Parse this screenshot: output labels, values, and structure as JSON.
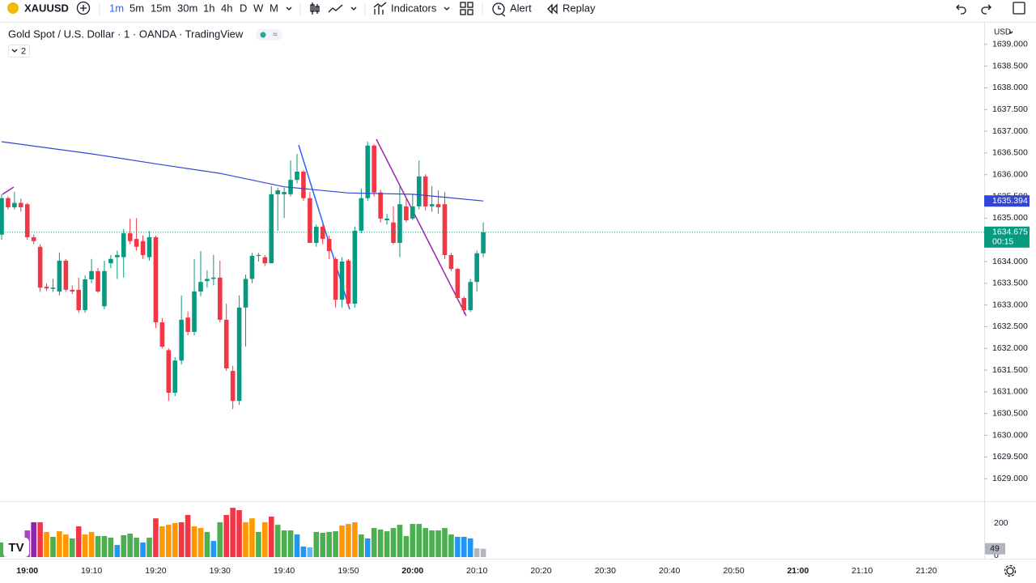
{
  "toolbar": {
    "symbol": "XAUUSD",
    "intervals": [
      "1m",
      "5m",
      "15m",
      "30m",
      "1h",
      "4h",
      "D",
      "W",
      "M"
    ],
    "active_interval": "1m",
    "indicators": "Indicators",
    "alert": "Alert",
    "replay": "Replay"
  },
  "chart_data": {
    "type": "candlestick",
    "title": "Gold Spot / U.S. Dollar · 1 · OANDA · TradingView",
    "indicator_count": 2,
    "currency": "USD",
    "x": [
      "18:56",
      "18:57",
      "18:58",
      "18:59",
      "19:00",
      "19:01",
      "19:02",
      "19:03",
      "19:04",
      "19:05",
      "19:06",
      "19:07",
      "19:08",
      "19:09",
      "19:10",
      "19:11",
      "19:12",
      "19:13",
      "19:14",
      "19:15",
      "19:16",
      "19:17",
      "19:18",
      "19:19",
      "19:20",
      "19:21",
      "19:22",
      "19:23",
      "19:24",
      "19:25",
      "19:26",
      "19:27",
      "19:28",
      "19:29",
      "19:30",
      "19:31",
      "19:32",
      "19:33",
      "19:34",
      "19:35",
      "19:36",
      "19:37",
      "19:38",
      "19:39",
      "19:40",
      "19:41",
      "19:42",
      "19:43",
      "19:44",
      "19:45",
      "19:46",
      "19:47",
      "19:48",
      "19:49",
      "19:50",
      "19:51",
      "19:52",
      "19:53",
      "19:54",
      "19:55",
      "19:56",
      "19:57",
      "19:58",
      "19:59",
      "20:00",
      "20:01",
      "20:02",
      "20:03",
      "20:04",
      "20:05",
      "20:06",
      "20:07",
      "20:08",
      "20:09",
      "20:10",
      "20:11"
    ],
    "xlim": [
      "18:56",
      "21:29"
    ],
    "xticks": [
      "19:00",
      "19:10",
      "19:20",
      "19:30",
      "19:40",
      "19:50",
      "20:00",
      "20:10",
      "20:20",
      "20:30",
      "20:40",
      "20:50",
      "21:00",
      "21:10",
      "21:20"
    ],
    "candles": [
      [
        1634.62,
        1635.55,
        1634.5,
        1635.46
      ],
      [
        1635.46,
        1635.5,
        1635.2,
        1635.25
      ],
      [
        1635.25,
        1635.6,
        1635.2,
        1635.35
      ],
      [
        1635.35,
        1635.45,
        1635.15,
        1635.25
      ],
      [
        1635.32,
        1635.35,
        1634.5,
        1634.56
      ],
      [
        1634.56,
        1634.62,
        1634.4,
        1634.47
      ],
      [
        1634.34,
        1634.4,
        1633.3,
        1633.4
      ],
      [
        1633.42,
        1633.5,
        1633.32,
        1633.38
      ],
      [
        1633.37,
        1633.6,
        1633.3,
        1633.4
      ],
      [
        1633.31,
        1634.21,
        1633.22,
        1634.02
      ],
      [
        1634.02,
        1634.06,
        1633.3,
        1633.35
      ],
      [
        1633.35,
        1633.45,
        1633.25,
        1633.31
      ],
      [
        1633.35,
        1633.63,
        1632.82,
        1632.88
      ],
      [
        1632.88,
        1633.68,
        1632.82,
        1633.59
      ],
      [
        1633.59,
        1634.06,
        1633.5,
        1633.78
      ],
      [
        1633.78,
        1633.85,
        1633.28,
        1633.31
      ],
      [
        1632.97,
        1634.02,
        1632.9,
        1633.78
      ],
      [
        1633.96,
        1634.15,
        1633.85,
        1634.06
      ],
      [
        1634.1,
        1634.25,
        1633.6,
        1634.15
      ],
      [
        1634.1,
        1634.75,
        1633.63,
        1634.65
      ],
      [
        1634.65,
        1634.99,
        1634.4,
        1634.47
      ],
      [
        1634.52,
        1635.0,
        1634.25,
        1634.34
      ],
      [
        1634.47,
        1634.6,
        1634.06,
        1634.15
      ],
      [
        1634.1,
        1634.7,
        1634.02,
        1634.56
      ],
      [
        1634.56,
        1634.6,
        1632.47,
        1632.6
      ],
      [
        1632.6,
        1632.7,
        1632.0,
        1632.04
      ],
      [
        1631.96,
        1632.0,
        1630.79,
        1630.98
      ],
      [
        1630.98,
        1631.8,
        1630.9,
        1631.72
      ],
      [
        1631.72,
        1633.22,
        1631.63,
        1632.66
      ],
      [
        1632.71,
        1632.85,
        1632.3,
        1632.38
      ],
      [
        1632.38,
        1634.06,
        1632.3,
        1633.31
      ],
      [
        1633.31,
        1634.24,
        1633.2,
        1633.53
      ],
      [
        1633.55,
        1633.8,
        1633.4,
        1633.6
      ],
      [
        1633.6,
        1634.15,
        1633.45,
        1633.63
      ],
      [
        1633.63,
        1634.02,
        1632.6,
        1632.66
      ],
      [
        1632.66,
        1633.03,
        1631.48,
        1631.54
      ],
      [
        1631.48,
        1631.6,
        1630.6,
        1630.79
      ],
      [
        1630.79,
        1633.22,
        1630.7,
        1632.94
      ],
      [
        1632.94,
        1633.7,
        1632.04,
        1633.6
      ],
      [
        1633.6,
        1634.2,
        1633.5,
        1634.13
      ],
      [
        1634.13,
        1634.2,
        1634.0,
        1634.15
      ],
      [
        1634.1,
        1634.15,
        1633.9,
        1633.96
      ],
      [
        1633.96,
        1635.74,
        1633.96,
        1635.55
      ],
      [
        1635.55,
        1635.7,
        1634.71,
        1635.64
      ],
      [
        1635.55,
        1635.7,
        1635.0,
        1635.6
      ],
      [
        1635.55,
        1636.33,
        1635.5,
        1635.88
      ],
      [
        1635.88,
        1636.48,
        1635.8,
        1636.07
      ],
      [
        1636.07,
        1636.1,
        1635.4,
        1635.46
      ],
      [
        1635.46,
        1635.6,
        1634.43,
        1634.43
      ],
      [
        1634.43,
        1634.85,
        1634.34,
        1634.8
      ],
      [
        1634.8,
        1634.85,
        1634.4,
        1634.52
      ],
      [
        1634.52,
        1634.6,
        1634.06,
        1634.24
      ],
      [
        1634.06,
        1634.1,
        1632.94,
        1633.12
      ],
      [
        1633.12,
        1634.1,
        1632.94,
        1634.0
      ],
      [
        1634.02,
        1634.06,
        1632.97,
        1633.03
      ],
      [
        1633.03,
        1634.8,
        1632.94,
        1634.71
      ],
      [
        1634.71,
        1635.68,
        1634.65,
        1635.46
      ],
      [
        1635.46,
        1636.76,
        1635.4,
        1636.67
      ],
      [
        1636.67,
        1636.7,
        1635.5,
        1635.59
      ],
      [
        1635.59,
        1635.65,
        1634.9,
        1634.99
      ],
      [
        1634.95,
        1635.1,
        1634.85,
        1634.99
      ],
      [
        1634.9,
        1635.27,
        1634.4,
        1634.43
      ],
      [
        1634.43,
        1635.74,
        1634.1,
        1635.32
      ],
      [
        1635.27,
        1635.46,
        1634.9,
        1634.95
      ],
      [
        1634.99,
        1635.55,
        1634.95,
        1635.27
      ],
      [
        1635.27,
        1636.33,
        1635.2,
        1635.96
      ],
      [
        1635.96,
        1636.01,
        1635.18,
        1635.27
      ],
      [
        1635.27,
        1635.74,
        1635.15,
        1635.32
      ],
      [
        1635.32,
        1635.64,
        1635.1,
        1635.25
      ],
      [
        1635.32,
        1635.6,
        1634.06,
        1634.15
      ],
      [
        1634.15,
        1634.2,
        1633.78,
        1633.83
      ],
      [
        1633.83,
        1633.85,
        1633.12,
        1633.16
      ],
      [
        1633.16,
        1633.2,
        1632.79,
        1632.88
      ],
      [
        1632.88,
        1633.6,
        1632.84,
        1633.53
      ],
      [
        1633.53,
        1634.25,
        1633.31,
        1634.19
      ],
      [
        1634.19,
        1634.9,
        1634.1,
        1634.675
      ]
    ],
    "up_color": "#089981",
    "down_color": "#f23645",
    "ylim": [
      1628.5,
      1639.5
    ],
    "yticks": [
      {
        "value": 1629,
        "label": "1629.000"
      },
      {
        "value": 1629.5,
        "label": "1629.500"
      },
      {
        "value": 1630,
        "label": "1630.000"
      },
      {
        "value": 1630.5,
        "label": "1630.500"
      },
      {
        "value": 1631,
        "label": "1631.000"
      },
      {
        "value": 1631.5,
        "label": "1631.500"
      },
      {
        "value": 1632,
        "label": "1632.000"
      },
      {
        "value": 1632.5,
        "label": "1632.500"
      },
      {
        "value": 1633,
        "label": "1633.000"
      },
      {
        "value": 1633.5,
        "label": "1633.500"
      },
      {
        "value": 1634,
        "label": "1634.000"
      },
      {
        "value": 1634.5,
        "label": "1634.500"
      },
      {
        "value": 1635,
        "label": "1635.000"
      },
      {
        "value": 1635.5,
        "label": "1635.500"
      },
      {
        "value": 1636,
        "label": "1636.000"
      },
      {
        "value": 1636.5,
        "label": "1636.500"
      },
      {
        "value": 1637,
        "label": "1637.000"
      },
      {
        "value": 1637.5,
        "label": "1637.500"
      },
      {
        "value": 1638,
        "label": "1638.000"
      },
      {
        "value": 1638.5,
        "label": "1638.500"
      },
      {
        "value": 1639,
        "label": "1639.000"
      }
    ],
    "grid": false,
    "countdown": "00:15",
    "ma": {
      "color": "#3345d6",
      "x": [
        "18:56",
        "19:10",
        "19:20",
        "19:30",
        "19:40",
        "19:50",
        "20:00",
        "20:05",
        "20:11"
      ],
      "values": [
        1636.76,
        1636.48,
        1636.25,
        1636.03,
        1635.72,
        1635.58,
        1635.55,
        1635.48,
        1635.394
      ]
    },
    "volume": {
      "values": [
        86,
        95,
        76,
        110,
        157,
        205,
        205,
        148,
        119,
        152,
        133,
        110,
        181,
        133,
        148,
        124,
        124,
        114,
        71,
        129,
        138,
        114,
        86,
        114,
        228,
        181,
        190,
        200,
        205,
        248,
        181,
        171,
        148,
        95,
        205,
        248,
        290,
        276,
        205,
        228,
        148,
        205,
        238,
        190,
        157,
        157,
        133,
        62,
        57,
        148,
        143,
        148,
        152,
        186,
        195,
        205,
        133,
        110,
        171,
        162,
        152,
        171,
        190,
        124,
        195,
        195,
        171,
        157,
        157,
        171,
        133,
        119,
        119,
        110,
        52,
        49
      ],
      "colors": [
        "#4caf50",
        "#4caf50",
        "#4caf50",
        "#4caf50",
        "#ab47bc",
        "#8e24aa",
        "#f23645",
        "#ff9800",
        "#4caf50",
        "#ff9800",
        "#ff9800",
        "#4caf50",
        "#f23645",
        "#ff9800",
        "#ff9800",
        "#4caf50",
        "#4caf50",
        "#4caf50",
        "#2196f3",
        "#4caf50",
        "#4caf50",
        "#4caf50",
        "#2196f3",
        "#4caf50",
        "#f23645",
        "#ff9800",
        "#ff9800",
        "#ff9800",
        "#f23645",
        "#f23645",
        "#ff9800",
        "#ff9800",
        "#4caf50",
        "#2196f3",
        "#4caf50",
        "#f23645",
        "#f23645",
        "#f23645",
        "#ff9800",
        "#ff9800",
        "#4caf50",
        "#ff9800",
        "#f23645",
        "#4caf50",
        "#4caf50",
        "#4caf50",
        "#2196f3",
        "#2196f3",
        "#64b5f6",
        "#4caf50",
        "#4caf50",
        "#4caf50",
        "#4caf50",
        "#ff9800",
        "#ff9800",
        "#ff9800",
        "#4caf50",
        "#2196f3",
        "#4caf50",
        "#4caf50",
        "#4caf50",
        "#4caf50",
        "#4caf50",
        "#4caf50",
        "#4caf50",
        "#4caf50",
        "#4caf50",
        "#4caf50",
        "#4caf50",
        "#4caf50",
        "#4caf50",
        "#2196f3",
        "#2196f3",
        "#2196f3",
        "#b2b5be",
        "#b2b5be"
      ],
      "y2lim": [
        0,
        324
      ],
      "y2ticks": [
        0,
        200
      ]
    }
  }
}
